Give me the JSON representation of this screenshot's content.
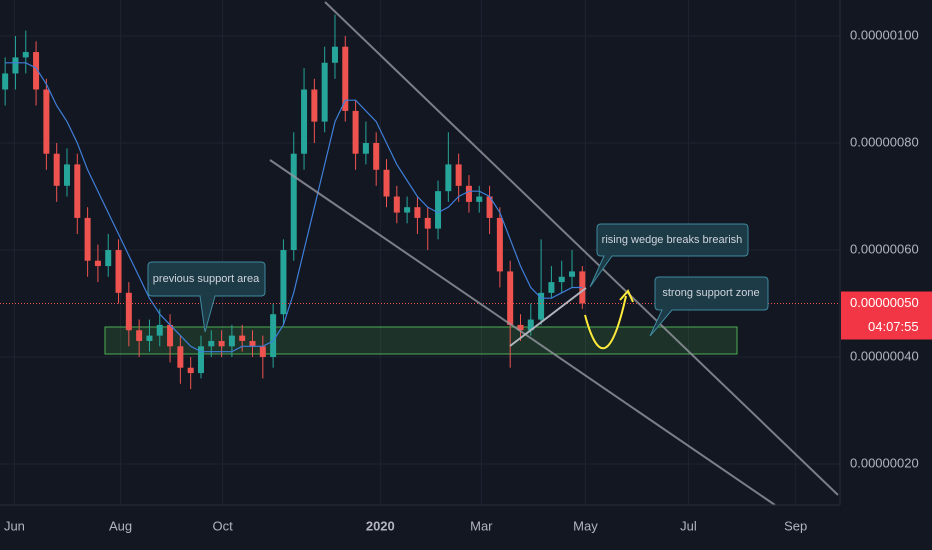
{
  "chart_data": {
    "type": "candlestick",
    "open": [
      9e-07,
      9.3e-07,
      9.6e-07,
      9.7e-07,
      9e-07,
      7.8e-07,
      7.2e-07,
      7.6e-07,
      6.6e-07,
      5.8e-07,
      5.7e-07,
      6e-07,
      5.2e-07,
      4.5e-07,
      4.3e-07,
      4.4e-07,
      4.6e-07,
      4.2e-07,
      3.8e-07,
      3.7e-07,
      4.2e-07,
      4.3e-07,
      4.2e-07,
      4.4e-07,
      4.3e-07,
      4.2e-07,
      4e-07,
      4.8e-07,
      6e-07,
      7.8e-07,
      9e-07,
      8.4e-07,
      9.5e-07,
      9.8e-07,
      8.6e-07,
      7.8e-07,
      8e-07,
      7.5e-07,
      7e-07,
      6.7e-07,
      6.8e-07,
      6.6e-07,
      6.4e-07,
      7.1e-07,
      7.6e-07,
      7.2e-07,
      6.9e-07,
      7e-07,
      6.6e-07,
      5.6e-07,
      4.6e-07,
      4.5e-07,
      4.7e-07,
      5.2e-07,
      5.4e-07,
      5.5e-07,
      5.6e-07
    ],
    "high": [
      9.6e-07,
      1e-06,
      1.01e-06,
      9.9e-07,
      9.2e-07,
      8e-07,
      7.9e-07,
      7.8e-07,
      6.8e-07,
      6.1e-07,
      6.3e-07,
      6.2e-07,
      5.4e-07,
      4.7e-07,
      4.7e-07,
      4.9e-07,
      4.8e-07,
      4.4e-07,
      4e-07,
      4.4e-07,
      4.5e-07,
      4.5e-07,
      4.6e-07,
      4.6e-07,
      4.5e-07,
      4.4e-07,
      5e-07,
      6.2e-07,
      8.2e-07,
      9.4e-07,
      9.2e-07,
      9.8e-07,
      1.04e-06,
      1e-06,
      8.8e-07,
      8.4e-07,
      8.2e-07,
      7.7e-07,
      7.2e-07,
      7e-07,
      7e-07,
      6.8e-07,
      7.3e-07,
      8.2e-07,
      7.8e-07,
      7.4e-07,
      7.2e-07,
      7.2e-07,
      6.8e-07,
      5.8e-07,
      4.8e-07,
      5e-07,
      6.2e-07,
      5.7e-07,
      5.8e-07,
      6e-07,
      5.7e-07
    ],
    "low": [
      8.7e-07,
      9e-07,
      9.3e-07,
      8.7e-07,
      7.5e-07,
      6.9e-07,
      7e-07,
      6.3e-07,
      5.5e-07,
      5.4e-07,
      5.5e-07,
      5e-07,
      4.2e-07,
      4e-07,
      4.1e-07,
      4.2e-07,
      3.9e-07,
      3.5e-07,
      3.4e-07,
      3.6e-07,
      4e-07,
      4e-07,
      4e-07,
      4.1e-07,
      4e-07,
      3.6e-07,
      3.8e-07,
      4.6e-07,
      5.8e-07,
      7.5e-07,
      8e-07,
      8.2e-07,
      9.2e-07,
      8.4e-07,
      7.5e-07,
      7.6e-07,
      7.2e-07,
      6.8e-07,
      6.5e-07,
      6.5e-07,
      6.3e-07,
      6e-07,
      6.2e-07,
      6.9e-07,
      6.9e-07,
      6.7e-07,
      6.7e-07,
      6.3e-07,
      5.3e-07,
      3.8e-07,
      4.3e-07,
      4.4e-07,
      4.6e-07,
      5.1e-07,
      5.2e-07,
      5.3e-07,
      4.9e-07
    ],
    "close": [
      9.3e-07,
      9.6e-07,
      9.7e-07,
      9e-07,
      7.8e-07,
      7.2e-07,
      7.6e-07,
      6.6e-07,
      5.8e-07,
      5.7e-07,
      6e-07,
      5.2e-07,
      4.5e-07,
      4.3e-07,
      4.4e-07,
      4.6e-07,
      4.2e-07,
      3.8e-07,
      3.7e-07,
      4.2e-07,
      4.3e-07,
      4.2e-07,
      4.4e-07,
      4.3e-07,
      4.2e-07,
      4e-07,
      4.8e-07,
      6e-07,
      7.8e-07,
      9e-07,
      8.4e-07,
      9.5e-07,
      9.8e-07,
      8.6e-07,
      7.8e-07,
      8e-07,
      7.5e-07,
      7e-07,
      6.7e-07,
      6.8e-07,
      6.6e-07,
      6.4e-07,
      7.1e-07,
      7.6e-07,
      7.2e-07,
      6.9e-07,
      7e-07,
      6.6e-07,
      5.6e-07,
      4.6e-07,
      4.5e-07,
      4.7e-07,
      5.2e-07,
      5.4e-07,
      5.5e-07,
      5.6e-07,
      5e-07
    ],
    "ma": {
      "color": "#3f7fd9",
      "values": [
        9.5e-07,
        9.5e-07,
        9.5e-07,
        9.4e-07,
        9.1e-07,
        8.7e-07,
        8.4e-07,
        8e-07,
        7.5e-07,
        7.1e-07,
        6.7e-07,
        6.3e-07,
        5.9e-07,
        5.5e-07,
        5.1e-07,
        4.8e-07,
        4.6e-07,
        4.4e-07,
        4.2e-07,
        4.1e-07,
        4.1e-07,
        4.1e-07,
        4.1e-07,
        4.2e-07,
        4.2e-07,
        4.2e-07,
        4.3e-07,
        4.6e-07,
        5.2e-07,
        6e-07,
        6.8e-07,
        7.6e-07,
        8.4e-07,
        8.8e-07,
        8.8e-07,
        8.6e-07,
        8.4e-07,
        8e-07,
        7.6e-07,
        7.3e-07,
        7e-07,
        6.8e-07,
        6.7e-07,
        6.8e-07,
        7e-07,
        7.1e-07,
        7.1e-07,
        7e-07,
        6.7e-07,
        6.2e-07,
        5.7e-07,
        5.3e-07,
        5.1e-07,
        5.1e-07,
        5.2e-07,
        5.3e-07,
        5.3e-07
      ]
    },
    "up_color": "#26a69a",
    "down_color": "#ef5350",
    "ylim": [
      1.234e-07,
      1.0673e-06
    ],
    "yticks": [
      {
        "value": 1e-06,
        "label": "0.00000100"
      },
      {
        "value": 8e-07,
        "label": "0.00000080"
      },
      {
        "value": 6e-07,
        "label": "0.00000060"
      },
      {
        "value": 4e-07,
        "label": "0.00000040"
      },
      {
        "value": 2e-07,
        "label": "0.00000020"
      }
    ],
    "xlim": [
      0,
      81.5
    ],
    "xticks": [
      {
        "value": 1.4,
        "label": "Jun"
      },
      {
        "value": 11.7,
        "label": "Aug"
      },
      {
        "value": 21.6,
        "label": "Oct"
      },
      {
        "value": 36.9,
        "label": "2020"
      },
      {
        "value": 46.7,
        "label": "Mar"
      },
      {
        "value": 56.8,
        "label": "May"
      },
      {
        "value": 66.8,
        "label": "Jul"
      },
      {
        "value": 77.2,
        "label": "Sep"
      }
    ],
    "grid": true,
    "current_price": {
      "value": 5e-07,
      "label": "0.00000050"
    },
    "countdown": "04:07:55",
    "annotations": [
      "previous support area",
      "rising wedge breaks brearish",
      "strong support zone"
    ]
  }
}
